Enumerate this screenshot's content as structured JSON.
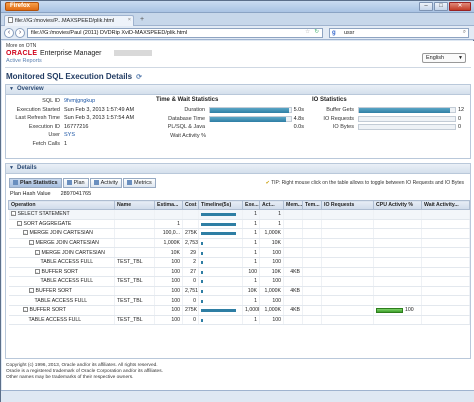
{
  "browser": {
    "app_button": "Firefox",
    "tab_title": "file:///G:/movies/P...MAXSPEED/plik.html",
    "url": "file:///G:/movies/Paul (2011) DVDRip XviD-MAXSPEED/plik.html",
    "search_value": "ussr",
    "new_tab_label": "+"
  },
  "report": {
    "header_small": "More on OTN",
    "brand": "ORACLE",
    "product": "Enterprise Manager",
    "subtitle": "Active Reports",
    "language": "English",
    "title": "Monitored SQL Execution Details"
  },
  "overview": {
    "heading": "Overview",
    "general": [
      {
        "k": "SQL ID",
        "v": "9fvmjgngkup",
        "link": true
      },
      {
        "k": "Execution Started",
        "v": "Sun Feb 3, 2013 1:57:49 AM"
      },
      {
        "k": "Last Refresh Time",
        "v": "Sun Feb 3, 2013 1:57:54 AM"
      },
      {
        "k": "Execution ID",
        "v": "16777216"
      },
      {
        "k": "User",
        "v": "SYS",
        "link": true
      },
      {
        "k": "Fetch Calls",
        "v": "1"
      }
    ],
    "time_wait": {
      "title": "Time & Wait Statistics",
      "rows": [
        {
          "k": "Duration",
          "v": "5.0s",
          "fill": 0.98
        },
        {
          "k": "Database Time",
          "v": "4.8s",
          "fill": 0.94
        },
        {
          "k": "PL/SQL & Java",
          "v": "0.0s",
          "fill": 0
        },
        {
          "k": "Wait Activity %",
          "v": "",
          "fill": 0
        }
      ]
    },
    "io": {
      "title": "IO Statistics",
      "rows": [
        {
          "k": "Buffer Gets",
          "v": "12",
          "fill": 0.95
        },
        {
          "k": "IO Requests",
          "v": "0",
          "fill": 0
        },
        {
          "k": "IO Bytes",
          "v": "0",
          "fill": 0
        }
      ]
    }
  },
  "details": {
    "heading": "Details",
    "tabs": [
      "Plan Statistics",
      "Plan",
      "Activity",
      "Metrics"
    ],
    "tip": "TIP: Right mouse click on the table allows to toggle between IO Requests and IO Bytes",
    "plan_hash_label": "Plan Hash Value",
    "plan_hash_value": "2897041765",
    "columns": [
      "Operation",
      "Name",
      "Estima...",
      "Cost",
      "Timeline(5s)",
      "Exe...",
      "Act...",
      "Mem...",
      "Tem...",
      "IO Requests",
      "CPU Activity %",
      "Wait Activity..."
    ],
    "rows": [
      {
        "op": "SELECT STATEMENT",
        "indent": 0,
        "exp": "-",
        "name": "",
        "est": "",
        "cost": "",
        "tl": 0.9,
        "exe": "1",
        "act": "1",
        "mem": "",
        "tem": "",
        "io": "",
        "cpu": 0,
        "cpu_label": "",
        "wait": ""
      },
      {
        "op": "SORT AGGREGATE",
        "indent": 1,
        "exp": "-",
        "name": "",
        "est": "1",
        "cost": "",
        "tl": 0.9,
        "exe": "1",
        "act": "1",
        "mem": "",
        "tem": "",
        "io": "",
        "cpu": 0,
        "cpu_label": "",
        "wait": ""
      },
      {
        "op": "MERGE JOIN CARTESIAN",
        "indent": 2,
        "exp": "-",
        "name": "",
        "est": "100,0...",
        "cost": "275K",
        "tl": 0.9,
        "exe": "1",
        "act": "1,000K",
        "mem": "",
        "tem": "",
        "io": "",
        "cpu": 0,
        "cpu_label": "",
        "wait": ""
      },
      {
        "op": "MERGE JOIN CARTESIAN",
        "indent": 3,
        "exp": "-",
        "name": "",
        "est": "1,000K",
        "cost": "2,753",
        "tl": 0.05,
        "exe": "1",
        "act": "10K",
        "mem": "",
        "tem": "",
        "io": "",
        "cpu": 0,
        "cpu_label": "",
        "wait": ""
      },
      {
        "op": "MERGE JOIN CARTESIAN",
        "indent": 4,
        "exp": "-",
        "name": "",
        "est": "10K",
        "cost": "29",
        "tl": 0.05,
        "exe": "1",
        "act": "100",
        "mem": "",
        "tem": "",
        "io": "",
        "cpu": 0,
        "cpu_label": "",
        "wait": ""
      },
      {
        "op": "TABLE ACCESS FULL",
        "indent": 5,
        "exp": "",
        "name": "TEST_TBL",
        "est": "100",
        "cost": "2",
        "tl": 0.05,
        "exe": "1",
        "act": "100",
        "mem": "",
        "tem": "",
        "io": "",
        "cpu": 0,
        "cpu_label": "",
        "wait": ""
      },
      {
        "op": "BUFFER SORT",
        "indent": 4,
        "exp": "-",
        "name": "",
        "est": "100",
        "cost": "27",
        "tl": 0.05,
        "exe": "100",
        "act": "10K",
        "mem": "4KB",
        "tem": "",
        "io": "",
        "cpu": 0,
        "cpu_label": "",
        "wait": ""
      },
      {
        "op": "TABLE ACCESS FULL",
        "indent": 5,
        "exp": "",
        "name": "TEST_TBL",
        "est": "100",
        "cost": "0",
        "tl": 0.05,
        "exe": "1",
        "act": "100",
        "mem": "",
        "tem": "",
        "io": "",
        "cpu": 0,
        "cpu_label": "",
        "wait": ""
      },
      {
        "op": "BUFFER SORT",
        "indent": 3,
        "exp": "-",
        "name": "",
        "est": "100",
        "cost": "2,751",
        "tl": 0.05,
        "exe": "10K",
        "act": "1,000K",
        "mem": "4KB",
        "tem": "",
        "io": "",
        "cpu": 0,
        "cpu_label": "",
        "wait": ""
      },
      {
        "op": "TABLE ACCESS FULL",
        "indent": 4,
        "exp": "",
        "name": "TEST_TBL",
        "est": "100",
        "cost": "0",
        "tl": 0.05,
        "exe": "1",
        "act": "100",
        "mem": "",
        "tem": "",
        "io": "",
        "cpu": 0,
        "cpu_label": "",
        "wait": ""
      },
      {
        "op": "BUFFER SORT",
        "indent": 2,
        "exp": "-",
        "name": "",
        "est": "100",
        "cost": "275K",
        "tl": 0.9,
        "exe": "1,000K",
        "act": "1,000K",
        "mem": "4KB",
        "tem": "",
        "io": "",
        "cpu": 0.9,
        "cpu_label": "100",
        "wait": ""
      },
      {
        "op": "TABLE ACCESS FULL",
        "indent": 3,
        "exp": "",
        "name": "TEST_TBL",
        "est": "100",
        "cost": "0",
        "tl": 0.05,
        "exe": "1",
        "act": "100",
        "mem": "",
        "tem": "",
        "io": "",
        "cpu": 0,
        "cpu_label": "",
        "wait": ""
      }
    ]
  },
  "footer": {
    "lines": [
      "Copyright (c) 1996, 2013, Oracle and/or its affiliates. All rights reserved.",
      "Oracle is a registered trademark of Oracle Corporation and/or its affiliates.",
      "Other names may be trademarks of their respective owners."
    ]
  },
  "colors": {
    "accent": "#2e7ea4",
    "brand": "#d0021b",
    "cpu_bar": "#3e9f2a"
  }
}
